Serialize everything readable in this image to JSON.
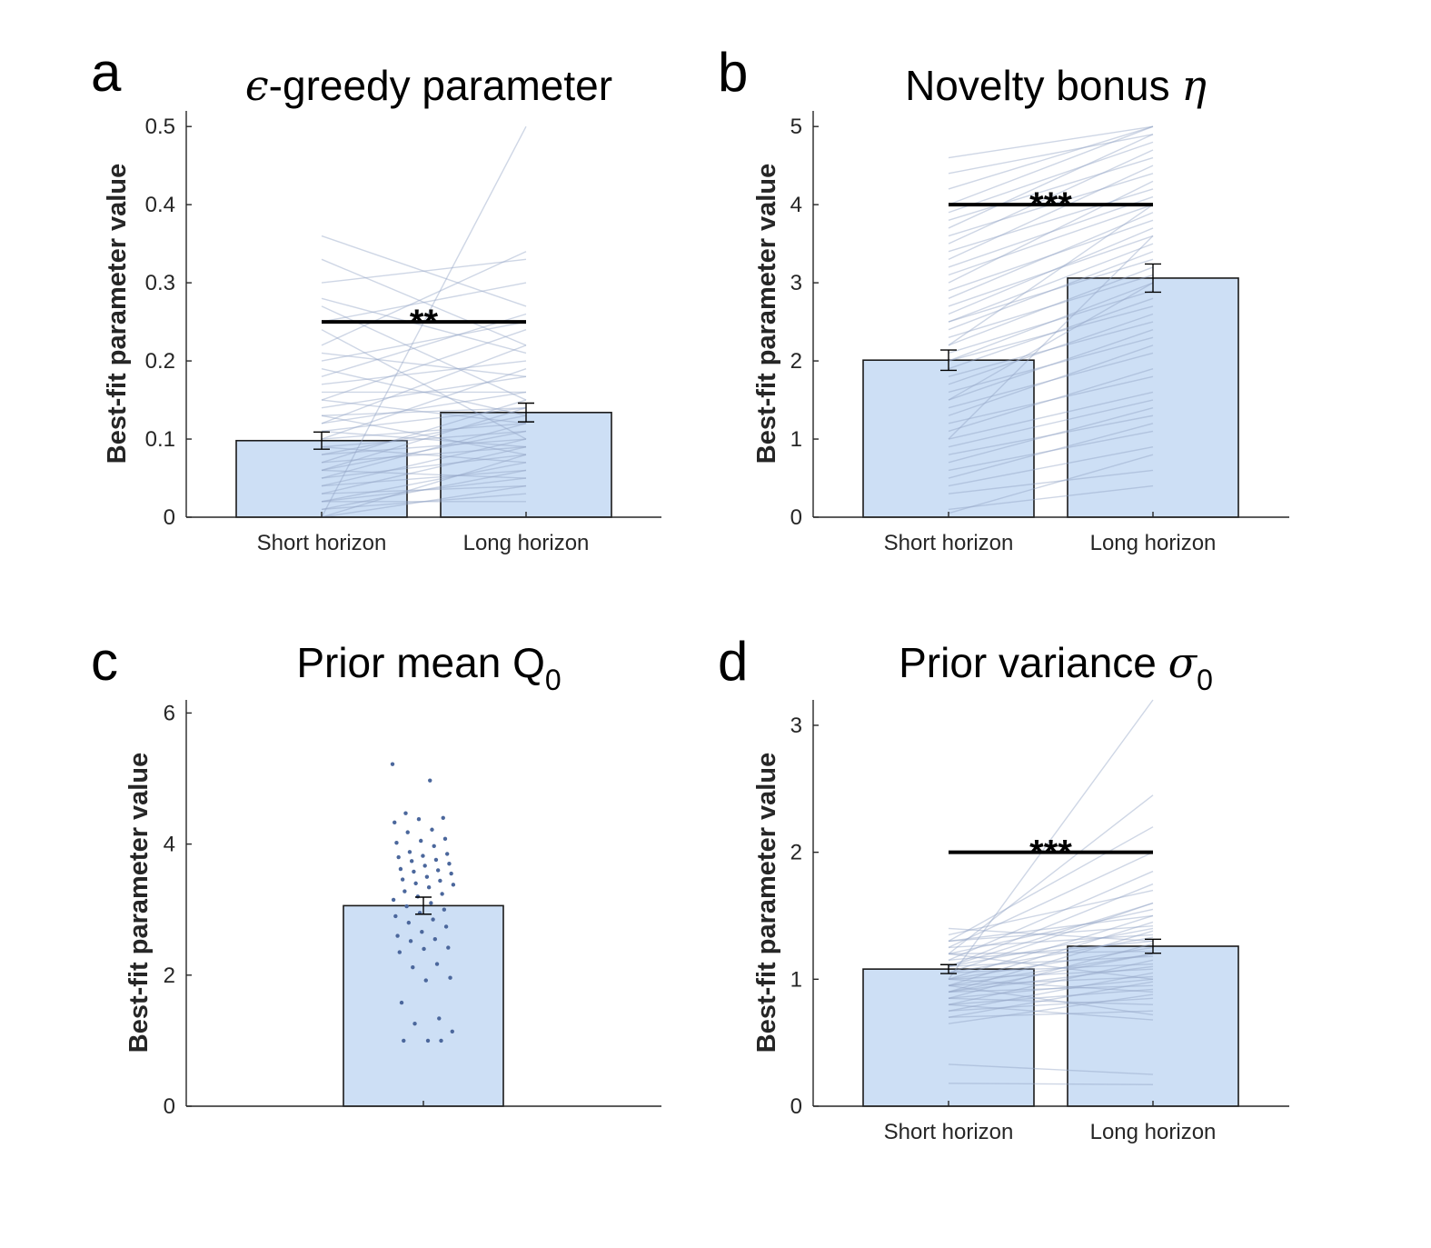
{
  "panels": [
    {
      "letter": "a",
      "title": "-greedy parameter",
      "title_symbol": "ϵ",
      "title_symbol_position": "before",
      "chart_data": {
        "type": "bar",
        "categories": [
          "Short horizon",
          "Long horizon"
        ],
        "values": [
          0.098,
          0.134
        ],
        "error": [
          0.011,
          0.012
        ],
        "ylabel": "Best-fit parameter value",
        "ylim": [
          0,
          0.52
        ],
        "yticks": [
          0,
          0.1,
          0.2,
          0.3,
          0.4,
          0.5
        ],
        "ytick_labels": [
          "0",
          "0.1",
          "0.2",
          "0.3",
          "0.4",
          "0.5"
        ],
        "significance": {
          "label": "**",
          "y": 0.25
        },
        "paired_lines": [
          [
            0.36,
            0.27
          ],
          [
            0.3,
            0.33
          ],
          [
            0.25,
            0.3
          ],
          [
            0.33,
            0.22
          ],
          [
            0.22,
            0.34
          ],
          [
            0.28,
            0.21
          ],
          [
            0.2,
            0.25
          ],
          [
            0.18,
            0.26
          ],
          [
            0.15,
            0.24
          ],
          [
            0.12,
            0.22
          ],
          [
            0.27,
            0.15
          ],
          [
            0.24,
            0.1
          ],
          [
            0.21,
            0.18
          ],
          [
            0.19,
            0.13
          ],
          [
            0.17,
            0.2
          ],
          [
            0.15,
            0.12
          ],
          [
            0.14,
            0.18
          ],
          [
            0.13,
            0.08
          ],
          [
            0.12,
            0.16
          ],
          [
            0.11,
            0.14
          ],
          [
            0.1,
            0.19
          ],
          [
            0.1,
            0.12
          ],
          [
            0.09,
            0.07
          ],
          [
            0.08,
            0.13
          ],
          [
            0.08,
            0.1
          ],
          [
            0.07,
            0.15
          ],
          [
            0.07,
            0.09
          ],
          [
            0.06,
            0.11
          ],
          [
            0.06,
            0.05
          ],
          [
            0.05,
            0.12
          ],
          [
            0.05,
            0.08
          ],
          [
            0.04,
            0.1
          ],
          [
            0.04,
            0.06
          ],
          [
            0.03,
            0.09
          ],
          [
            0.03,
            0.04
          ],
          [
            0.02,
            0.07
          ],
          [
            0.02,
            0.05
          ],
          [
            0.01,
            0.06
          ],
          [
            0.01,
            0.03
          ],
          [
            0.0,
            0.5
          ],
          [
            0.0,
            0.04
          ],
          [
            0.0,
            0.08
          ],
          [
            0.02,
            0.02
          ],
          [
            0.06,
            0.14
          ],
          [
            0.09,
            0.11
          ],
          [
            0.11,
            0.09
          ],
          [
            0.13,
            0.14
          ],
          [
            0.16,
            0.16
          ]
        ]
      }
    },
    {
      "letter": "b",
      "title": "Novelty bonus ",
      "title_symbol": "η",
      "title_symbol_position": "after",
      "chart_data": {
        "type": "bar",
        "categories": [
          "Short horizon",
          "Long horizon"
        ],
        "values": [
          2.01,
          3.06
        ],
        "error": [
          0.13,
          0.18
        ],
        "ylabel": "Best-fit parameter value",
        "ylim": [
          0,
          5.2
        ],
        "yticks": [
          0,
          1,
          2,
          3,
          4,
          5
        ],
        "ytick_labels": [
          "0",
          "1",
          "2",
          "3",
          "4",
          "5"
        ],
        "significance": {
          "label": "***",
          "y": 4.0
        },
        "paired_lines": [
          [
            4.6,
            5.0
          ],
          [
            4.4,
            4.9
          ],
          [
            4.2,
            5.0
          ],
          [
            4.0,
            5.0
          ],
          [
            3.9,
            4.8
          ],
          [
            3.8,
            4.6
          ],
          [
            3.7,
            4.9
          ],
          [
            3.6,
            4.4
          ],
          [
            3.5,
            4.7
          ],
          [
            3.4,
            4.2
          ],
          [
            3.3,
            4.5
          ],
          [
            3.2,
            4.1
          ],
          [
            3.1,
            4.0
          ],
          [
            3.0,
            4.3
          ],
          [
            2.9,
            3.8
          ],
          [
            2.8,
            3.9
          ],
          [
            2.7,
            3.6
          ],
          [
            2.6,
            3.7
          ],
          [
            2.5,
            3.5
          ],
          [
            2.5,
            3.3
          ],
          [
            2.4,
            3.4
          ],
          [
            2.3,
            3.1
          ],
          [
            2.2,
            3.2
          ],
          [
            2.1,
            2.9
          ],
          [
            2.0,
            3.0
          ],
          [
            2.0,
            2.7
          ],
          [
            1.9,
            2.8
          ],
          [
            1.8,
            2.5
          ],
          [
            1.7,
            2.6
          ],
          [
            1.6,
            2.3
          ],
          [
            1.5,
            2.4
          ],
          [
            1.4,
            2.1
          ],
          [
            1.3,
            2.2
          ],
          [
            1.2,
            1.8
          ],
          [
            1.1,
            1.9
          ],
          [
            1.0,
            1.6
          ],
          [
            0.9,
            1.5
          ],
          [
            0.8,
            1.3
          ],
          [
            0.7,
            1.4
          ],
          [
            0.6,
            1.1
          ],
          [
            0.5,
            1.2
          ],
          [
            0.4,
            0.9
          ],
          [
            0.3,
            0.6
          ],
          [
            0.1,
            0.4
          ],
          [
            0.05,
            0.8
          ],
          [
            1.0,
            3.6
          ],
          [
            1.5,
            3.0
          ],
          [
            2.2,
            4.0
          ]
        ]
      }
    },
    {
      "letter": "c",
      "title": "Prior mean Q",
      "title_subscript": "0",
      "chart_data": {
        "type": "bar",
        "categories": [
          ""
        ],
        "values": [
          3.06
        ],
        "error": [
          0.13
        ],
        "ylabel": "Best-fit parameter value",
        "ylim": [
          0,
          6.2
        ],
        "yticks": [
          0,
          2,
          4,
          6
        ],
        "ytick_labels": [
          "0",
          "2",
          "4",
          "6"
        ],
        "points": [
          5.22,
          4.97,
          4.47,
          4.4,
          4.38,
          4.33,
          4.22,
          4.18,
          4.08,
          4.05,
          4.02,
          3.97,
          3.88,
          3.85,
          3.82,
          3.8,
          3.76,
          3.74,
          3.7,
          3.67,
          3.62,
          3.6,
          3.58,
          3.55,
          3.5,
          3.46,
          3.44,
          3.4,
          3.38,
          3.34,
          3.28,
          3.24,
          3.2,
          3.15,
          3.1,
          3.05,
          3.0,
          2.95,
          2.9,
          2.85,
          2.8,
          2.74,
          2.66,
          2.6,
          2.55,
          2.52,
          2.42,
          2.4,
          2.35,
          2.17,
          2.12,
          1.96,
          1.92,
          1.58,
          1.34,
          1.26,
          1.14,
          1.0,
          1.0,
          1.0
        ]
      }
    },
    {
      "letter": "d",
      "title": "Prior variance ",
      "title_symbol": "σ",
      "title_subscript": "0",
      "title_symbol_position": "after",
      "chart_data": {
        "type": "bar",
        "categories": [
          "Short horizon",
          "Long horizon"
        ],
        "values": [
          1.08,
          1.26
        ],
        "error": [
          0.035,
          0.055
        ],
        "ylabel": "Best-fit parameter value",
        "ylim": [
          0,
          3.2
        ],
        "yticks": [
          0,
          1,
          2,
          3
        ],
        "ytick_labels": [
          "0",
          "1",
          "2",
          "3"
        ],
        "significance": {
          "label": "***",
          "y": 2.0
        },
        "paired_lines": [
          [
            1.0,
            3.2
          ],
          [
            1.2,
            2.45
          ],
          [
            1.3,
            2.2
          ],
          [
            1.25,
            2.0
          ],
          [
            1.15,
            1.85
          ],
          [
            1.1,
            1.75
          ],
          [
            1.35,
            1.7
          ],
          [
            1.05,
            1.6
          ],
          [
            1.2,
            1.55
          ],
          [
            1.0,
            1.5
          ],
          [
            0.95,
            1.45
          ],
          [
            1.3,
            1.42
          ],
          [
            1.1,
            1.4
          ],
          [
            0.9,
            1.38
          ],
          [
            1.25,
            1.35
          ],
          [
            1.05,
            1.33
          ],
          [
            1.15,
            1.3
          ],
          [
            0.85,
            1.28
          ],
          [
            1.0,
            1.25
          ],
          [
            1.2,
            1.22
          ],
          [
            0.95,
            1.2
          ],
          [
            1.1,
            1.18
          ],
          [
            0.8,
            1.15
          ],
          [
            1.05,
            1.12
          ],
          [
            0.9,
            1.1
          ],
          [
            1.0,
            1.08
          ],
          [
            0.75,
            1.05
          ],
          [
            0.95,
            1.02
          ],
          [
            0.85,
            1.0
          ],
          [
            0.7,
            0.98
          ],
          [
            0.9,
            0.95
          ],
          [
            0.8,
            0.92
          ],
          [
            0.65,
            0.88
          ],
          [
            0.75,
            0.85
          ],
          [
            0.85,
            0.8
          ],
          [
            0.7,
            0.75
          ],
          [
            0.95,
            0.72
          ],
          [
            0.8,
            0.68
          ],
          [
            0.33,
            0.25
          ],
          [
            0.18,
            0.17
          ],
          [
            1.4,
            1.3
          ],
          [
            1.3,
            1.5
          ],
          [
            1.1,
            1.6
          ],
          [
            0.9,
            1.2
          ],
          [
            1.2,
            1.0
          ],
          [
            1.0,
            0.9
          ]
        ]
      }
    }
  ]
}
